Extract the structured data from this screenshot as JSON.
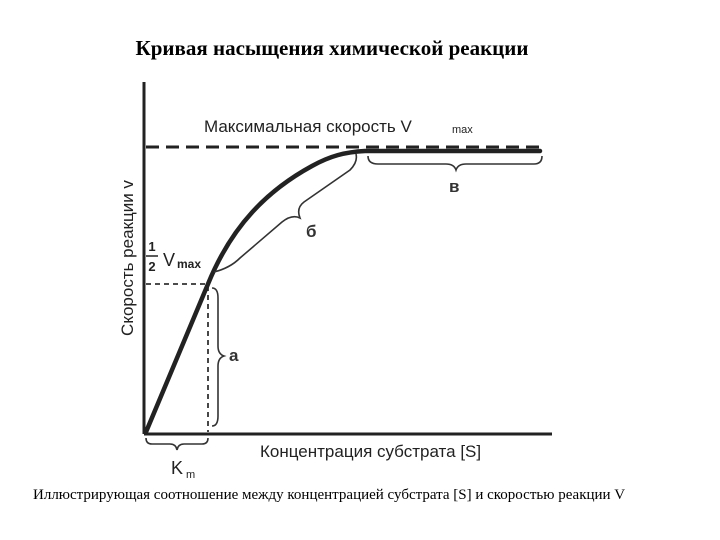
{
  "title": "Кривая насыщения химической реакции",
  "caption": "Иллюстрирующая соотношение между концентрацией субстрата [S] и скоростью реакции V",
  "chart_data": {
    "type": "line",
    "labels": {
      "y_axis": "Скорость реакции v",
      "x_axis": "Концентрация субстрата [S]",
      "vmax_main": "Максимальная скорость V",
      "vmax_sub": "max",
      "half_num": "1",
      "half_den": "2",
      "half_v": "V",
      "half_sub": "max",
      "km_main": "K",
      "km_sub": "m",
      "region_a": "а",
      "region_b": "б",
      "region_c": "в"
    },
    "colors": {
      "ink": "#222222"
    }
  }
}
